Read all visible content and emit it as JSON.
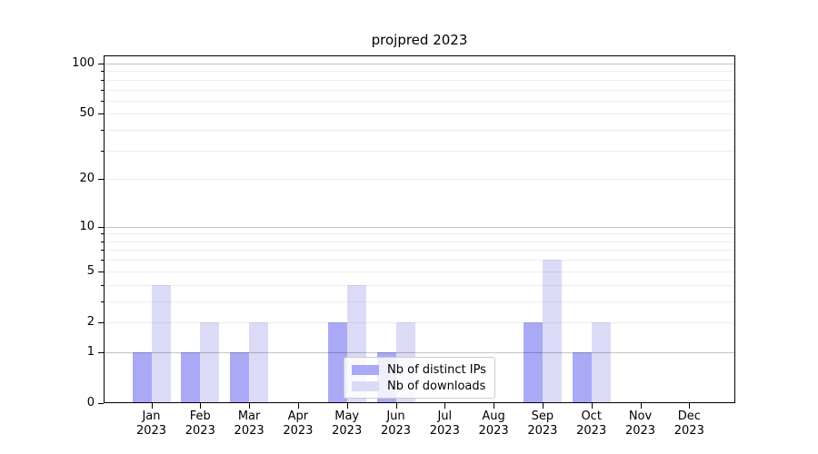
{
  "chart_data": {
    "type": "bar",
    "title": "projpred 2023",
    "categories": [
      "Jan 2023",
      "Feb 2023",
      "Mar 2023",
      "Apr 2023",
      "May 2023",
      "Jun 2023",
      "Jul 2023",
      "Aug 2023",
      "Sep 2023",
      "Oct 2023",
      "Nov 2023",
      "Dec 2023"
    ],
    "series": [
      {
        "name": "Nb of distinct IPs",
        "color": "#a9a9f5",
        "values": [
          1,
          1,
          1,
          0,
          2,
          1,
          0,
          0,
          2,
          1,
          0,
          0
        ]
      },
      {
        "name": "Nb of downloads",
        "color": "#dbdbf8",
        "values": [
          4,
          2,
          2,
          0,
          4,
          2,
          0,
          0,
          6,
          2,
          0,
          0
        ]
      }
    ],
    "xlabel": "",
    "ylabel": "",
    "yscale": "log1p",
    "ylim": [
      0,
      111
    ],
    "ytick_labels": [
      "0",
      "1",
      "2",
      "5",
      "10",
      "20",
      "50",
      "100"
    ],
    "yticks": [
      0,
      1,
      2,
      5,
      10,
      20,
      50,
      100
    ],
    "major_gridlines": [
      1,
      10,
      100
    ],
    "minor_gridlines": [
      2,
      3,
      4,
      5,
      6,
      7,
      8,
      9,
      20,
      30,
      40,
      50,
      60,
      70,
      80,
      90
    ],
    "grid": true,
    "legend_position": "lower center inside plot"
  }
}
